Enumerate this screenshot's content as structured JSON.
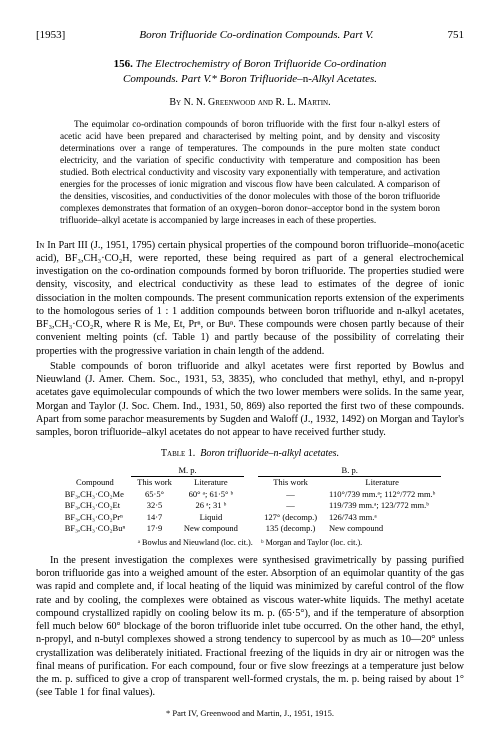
{
  "header": {
    "year": "[1953]",
    "running_title": "Boron Trifluoride Co-ordination Compounds. Part V.",
    "page": "751"
  },
  "article": {
    "number": "156.",
    "title_line1": "The Electrochemistry of Boron Trifluoride Co-ordination",
    "title_line2": "Compounds.   Part V.*   Boron Trifluoride–",
    "title_line2_tail": "n",
    "title_line2_end": "-Alkyl Acetates.",
    "authors": "By N. N. Greenwood and R. L. Martin."
  },
  "abstract": "The equimolar co-ordination compounds of boron trifluoride with the first four n-alkyl esters of acetic acid have been prepared and characterised by melting point, and by density and viscosity determinations over a range of temperatures. The compounds in the pure molten state conduct electricity, and the variation of specific conductivity with temperature and composition has been studied. Both electrical conductivity and viscosity vary exponentially with temperature, and activation energies for the processes of ionic migration and viscous flow have been calculated. A comparison of the densities, viscosities, and conductivities of the donor molecules with those of the boron trifluoride complexes demonstrates that formation of an oxygen–boron donor–acceptor bond in the system boron trifluoride–alkyl acetate is accompanied by large increases in each of these properties.",
  "para1": "In Part III (J., 1951, 1795) certain physical properties of the compound boron trifluoride–mono(acetic acid), BF₃,CH₃·CO₂H, were reported, these being required as part of a general electrochemical investigation on the co-ordination compounds formed by boron trifluoride. The properties studied were density, viscosity, and electrical conductivity as these lead to estimates of the degree of ionic dissociation in the molten compounds. The present communication reports extension of the experiments to the homologous series of 1 : 1 addition compounds between boron trifluoride and n-alkyl acetates, BF₃,CH₃·CO₂R, where R is Me, Et, Prⁿ, or Buⁿ. These compounds were chosen partly because of their convenient melting points (cf. Table 1) and partly because of the possibility of correlating their properties with the progressive variation in chain length of the addend.",
  "para2": "Stable compounds of boron trifluoride and alkyl acetates were first reported by Bowlus and Nieuwland (J. Amer. Chem. Soc., 1931, 53, 3835), who concluded that methyl, ethyl, and n-propyl acetates gave equimolecular compounds of which the two lower members were solids. In the same year, Morgan and Taylor (J. Soc. Chem. Ind., 1931, 50, 869) also reported the first two of these compounds. Apart from some parachor measurements by Sugden and Waloff (J., 1932, 1492) on Morgan and Taylor's samples, boron trifluoride–alkyl acetates do not appear to have received further study.",
  "table": {
    "caption_label": "Table 1.",
    "caption_text": "Boron trifluoride–n-alkyl acetates.",
    "group_mp": "M. p.",
    "group_bp": "B. p.",
    "col_compound": "Compound",
    "col_thiswork": "This work",
    "col_lit": "Literature",
    "rows": [
      {
        "c": "BF₃,CH₃·CO₂Me",
        "mp_tw": "65·5°",
        "mp_lit": "60° ᵃ; 61·5° ᵇ",
        "bp_tw": "—",
        "bp_lit": "110°/739 mm.ᵃ; 112°/772 mm.ᵇ"
      },
      {
        "c": "BF₃,CH₃·CO₂Et",
        "mp_tw": "32·5",
        "mp_lit": "26 ᵃ; 31 ᵇ",
        "bp_tw": "—",
        "bp_lit": "119/739 mm.ᵃ; 123/772 mm.ᵇ"
      },
      {
        "c": "BF₃,CH₃·CO₂Prⁿ",
        "mp_tw": "14·7",
        "mp_lit": "Liquid",
        "bp_tw": "127° (decomp.)",
        "bp_lit": "126/743 mm.ᵃ"
      },
      {
        "c": "BF₃,CH₃·CO₂Buⁿ",
        "mp_tw": "17·9",
        "mp_lit": "New compound",
        "bp_tw": "135  (decomp.)",
        "bp_lit": "New compound"
      }
    ],
    "note_a": "ᵃ Bowlus and Nieuwland (loc. cit.).",
    "note_b": "ᵇ Morgan and Taylor (loc. cit.)."
  },
  "para3": "In the present investigation the complexes were synthesised gravimetrically by passing purified boron trifluoride gas into a weighed amount of the ester. Absorption of an equimolar quantity of the gas was rapid and complete and, if local heating of the liquid was minimized by careful control of the flow rate and by cooling, the complexes were obtained as viscous water-white liquids. The methyl acetate compound crystallized rapidly on cooling below its m. p. (65·5°), and if the temperature of absorption fell much below 60° blockage of the boron trifluoride inlet tube occurred. On the other hand, the ethyl, n-propyl, and n-butyl complexes showed a strong tendency to supercool by as much as 10—20° unless crystallization was deliberately initiated. Fractional freezing of the liquids in dry air or nitrogen was the final means of purification. For each compound, four or five slow freezings at a temperature just below the m. p. sufficed to give a crop of transparent well-formed crystals, the m. p. being raised by about 1° (see Table 1 for final values).",
  "footnote": "* Part IV, Greenwood and Martin, J., 1951, 1915."
}
